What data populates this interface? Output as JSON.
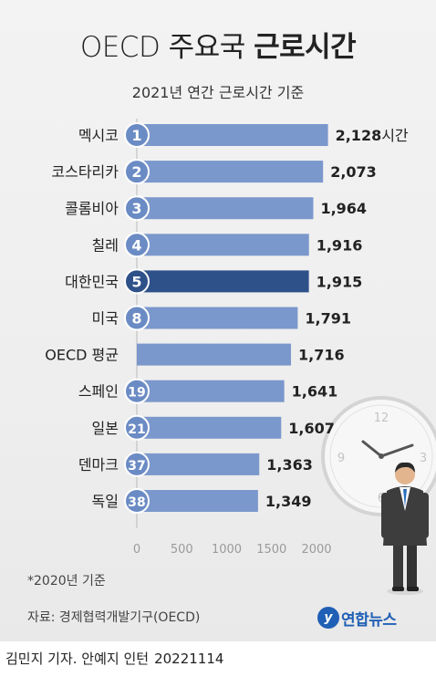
{
  "header": {
    "title_light": "OECD 주요국",
    "title_bold": "근로시간",
    "subtitle": "2021년 연간 근로시간 기준"
  },
  "chart_data": {
    "type": "bar",
    "orientation": "horizontal",
    "categories": [
      "멕시코",
      "코스타리카",
      "콜롬비아",
      "칠레",
      "대한민국",
      "미국",
      "OECD 평균",
      "스페인",
      "일본",
      "덴마크",
      "독일"
    ],
    "ranks": [
      "1",
      "2",
      "3",
      "4",
      "5",
      "8",
      "",
      "19",
      "21",
      "37",
      "38"
    ],
    "values": [
      2128,
      2073,
      1964,
      1916,
      1915,
      1791,
      1716,
      1641,
      1607,
      1363,
      1349
    ],
    "value_labels": [
      "2,128",
      "2,073",
      "1,964",
      "1,916",
      "1,915",
      "1,791",
      "1,716",
      "1,641",
      "1,607",
      "1,363",
      "1,349"
    ],
    "unit_label": "시간",
    "highlight": "대한민국",
    "xticks": [
      0,
      500,
      1000,
      1500,
      2000
    ],
    "xlim": [
      0,
      2200
    ],
    "colors": {
      "bar": "#7b98cc",
      "bar_highlight": "#2f5189",
      "badge": "#6b8bc4",
      "badge_highlight": "#2f5189"
    },
    "grid": false
  },
  "footnote": "*2020년 기준",
  "source": "자료: 경제협력개발기구(OECD)",
  "logo": {
    "mark": "y",
    "text": "연합뉴스"
  },
  "credit": {
    "byline": "김민지 기자. 안예지 인턴",
    "date": "20221114"
  },
  "clock": {
    "numerals": [
      "12",
      "3",
      "6",
      "9"
    ]
  }
}
